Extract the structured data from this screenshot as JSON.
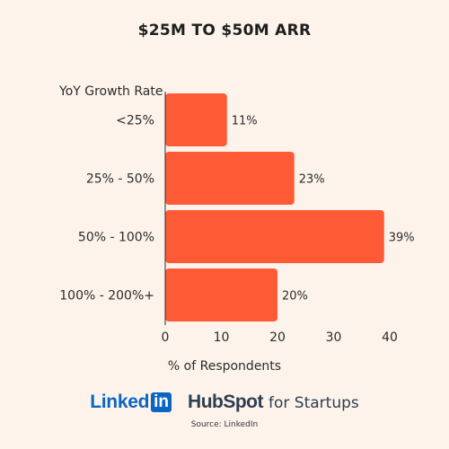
{
  "chart_data": {
    "type": "bar",
    "orientation": "horizontal",
    "title": "$25M TO $50M ARR",
    "ylabel": "YoY Growth Rate",
    "xlabel": "% of Respondents",
    "categories": [
      "<25%",
      "25% - 50%",
      "50% - 100%",
      "100% - 200%+"
    ],
    "values": [
      11,
      23,
      39,
      20
    ],
    "value_labels": [
      "11%",
      "23%",
      "39%",
      "20%"
    ],
    "xlim": [
      0,
      40
    ],
    "xticks": [
      "0",
      "10",
      "20",
      "30",
      "40"
    ],
    "grid": false,
    "bar_color": "#ff5a36"
  },
  "logos": {
    "linkedin_text": "Linked",
    "linkedin_box": "in",
    "hubspot_brand": "HubSpot",
    "hubspot_sub": "for Startups"
  },
  "source": "Source: LinkedIn",
  "colors": {
    "background": "#fdf3ea",
    "bar": "#ff5a36",
    "text": "#2b2b2b"
  }
}
